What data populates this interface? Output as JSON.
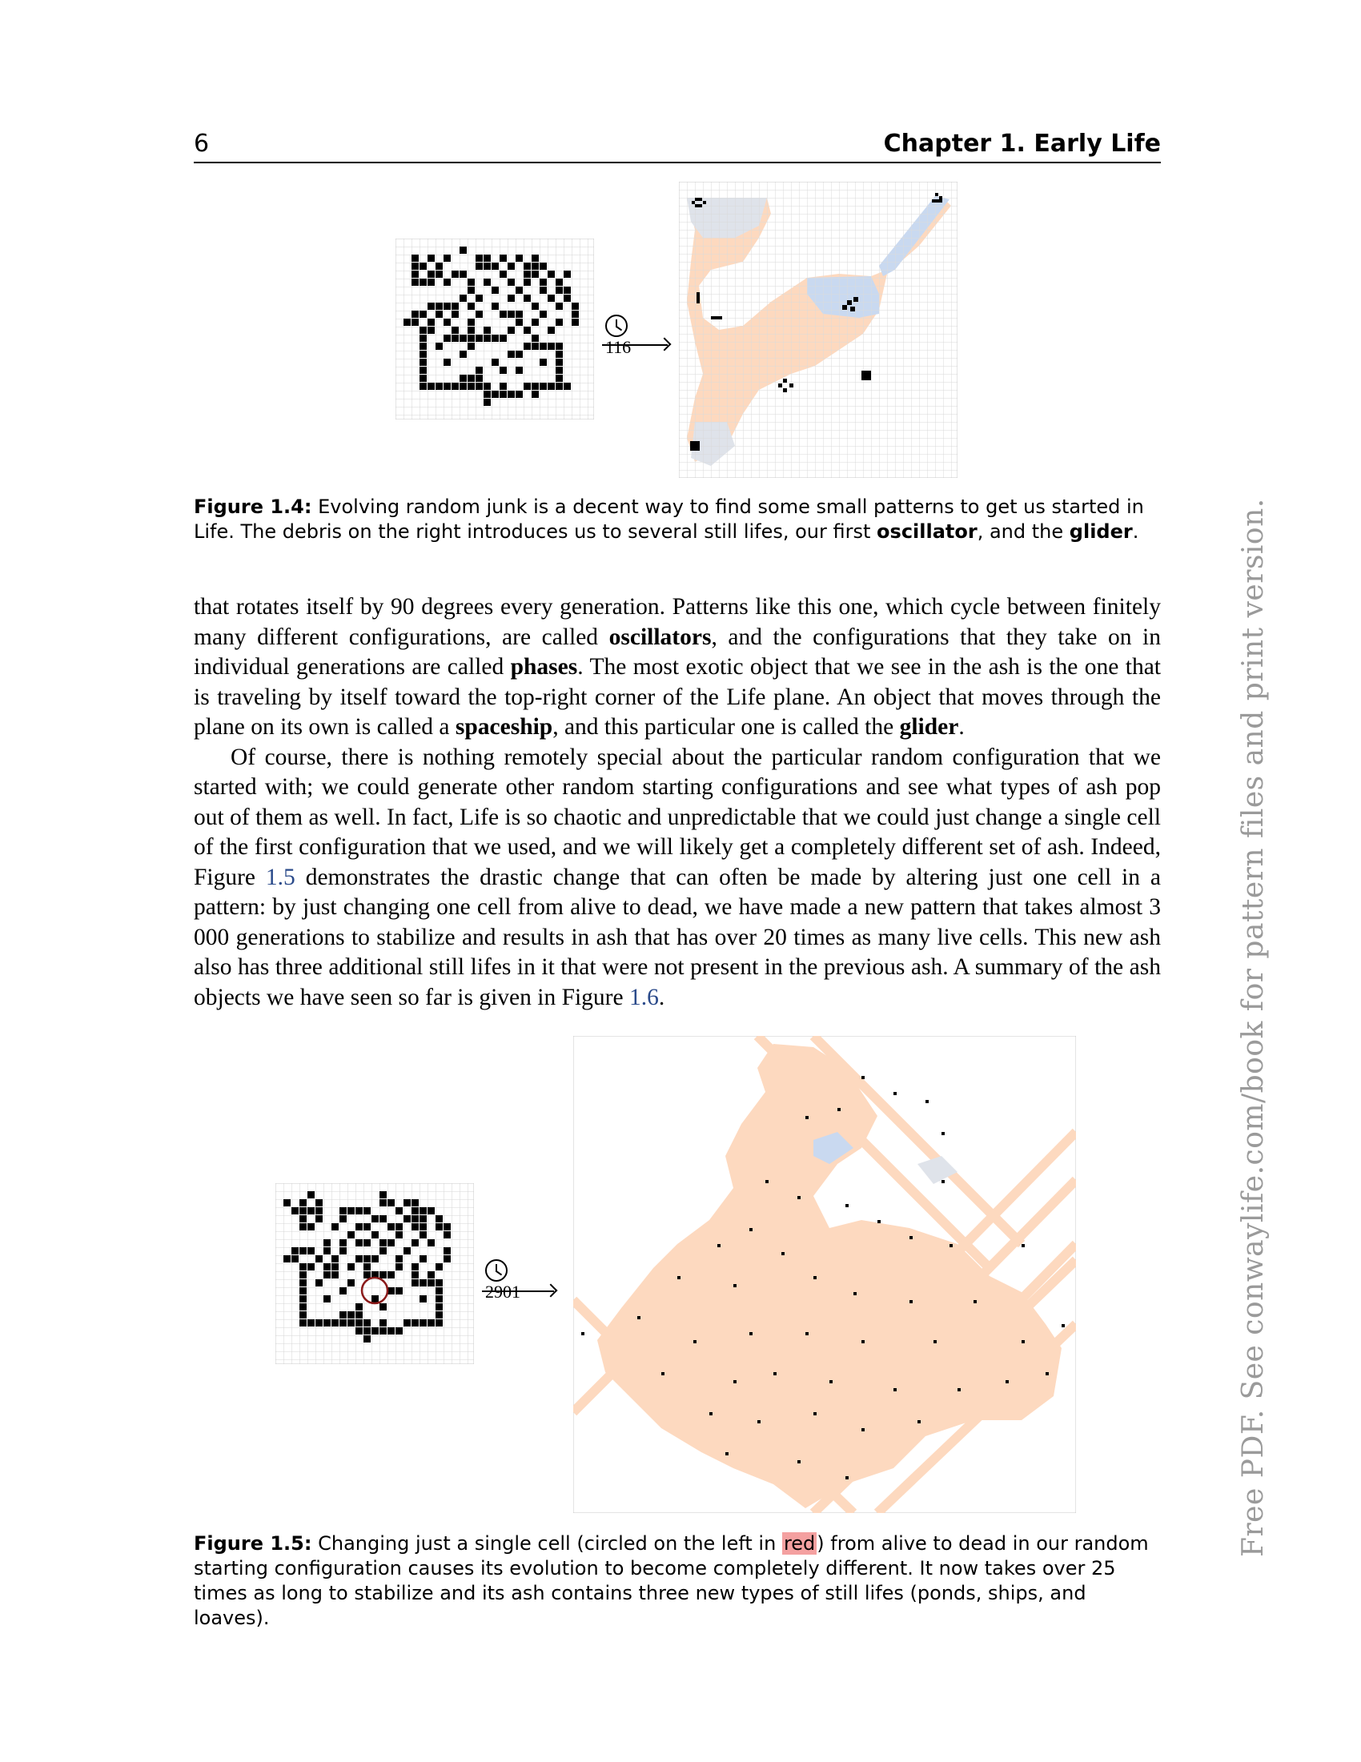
{
  "header": {
    "page_number": "6",
    "chapter": "Chapter 1. Early Life"
  },
  "figure_1_4": {
    "timer_label": "116",
    "caption_label": "Figure 1.4:",
    "caption_text_1": "Evolving random junk is a decent way to find some small patterns to get us started in Life. The debris on the right introduces us to several still lifes, our first ",
    "caption_term_1": "oscillator",
    "caption_text_2": ", and the ",
    "caption_term_2": "glider",
    "caption_text_3": "."
  },
  "body": {
    "p1_a": "that rotates itself by 90 degrees every generation. Patterns like this one, which cycle between finitely many different configurations, are called ",
    "p1_term_1": "oscillators",
    "p1_b": ", and the configurations that they take on in individual generations are called ",
    "p1_term_2": "phases",
    "p1_c": ". The most exotic object that we see in the ash is the one that is traveling by itself toward the top-right corner of the Life plane. An object that moves through the plane on its own is called a ",
    "p1_term_3": "spaceship",
    "p1_d": ", and this particular one is called the ",
    "p1_term_4": "glider",
    "p1_e": ".",
    "p2_a": "Of course, there is nothing remotely special about the particular random configuration that we started with; we could generate other random starting configurations and see what types of ash pop out of them as well. In fact, Life is so chaotic and unpredictable that we could just change a single cell of the first configuration that we used, and we will likely get a completely different set of ash. Indeed, Figure ",
    "p2_ref_1": "1.5",
    "p2_b": " demonstrates the drastic change that can often be made by altering just one cell in a pattern: by just changing one cell from alive to dead, we have made a new pattern that takes almost 3 000 generations to stabilize and results in ash that has over 20 times as many live cells. This new ash also has three additional still lifes in it that were not present in the previous ash. A summary of the ash objects we have seen so far is given in Figure ",
    "p2_ref_2": "1.6",
    "p2_c": "."
  },
  "figure_1_5": {
    "timer_label": "2901",
    "caption_label": "Figure 1.5:",
    "caption_text_1": "Changing just a single cell (circled on the left in ",
    "caption_highlight": "red",
    "caption_text_2": ") from alive to dead in our random starting configuration causes its evolution to become completely different. It now takes over 25 times as long to stabilize and its ash contains three new types of still lifes (ponds, ships, and loaves)."
  },
  "sidebar": {
    "text": "Free PDF.  See conwaylife.com/book for pattern files and print version."
  },
  "colors": {
    "ash_orange": "#fdd9bf",
    "ash_blue": "#c9d9f0",
    "ash_grey": "#dfe3ea",
    "highlight_red": "#f4a0a0",
    "circle_red": "#8b1a1a"
  }
}
